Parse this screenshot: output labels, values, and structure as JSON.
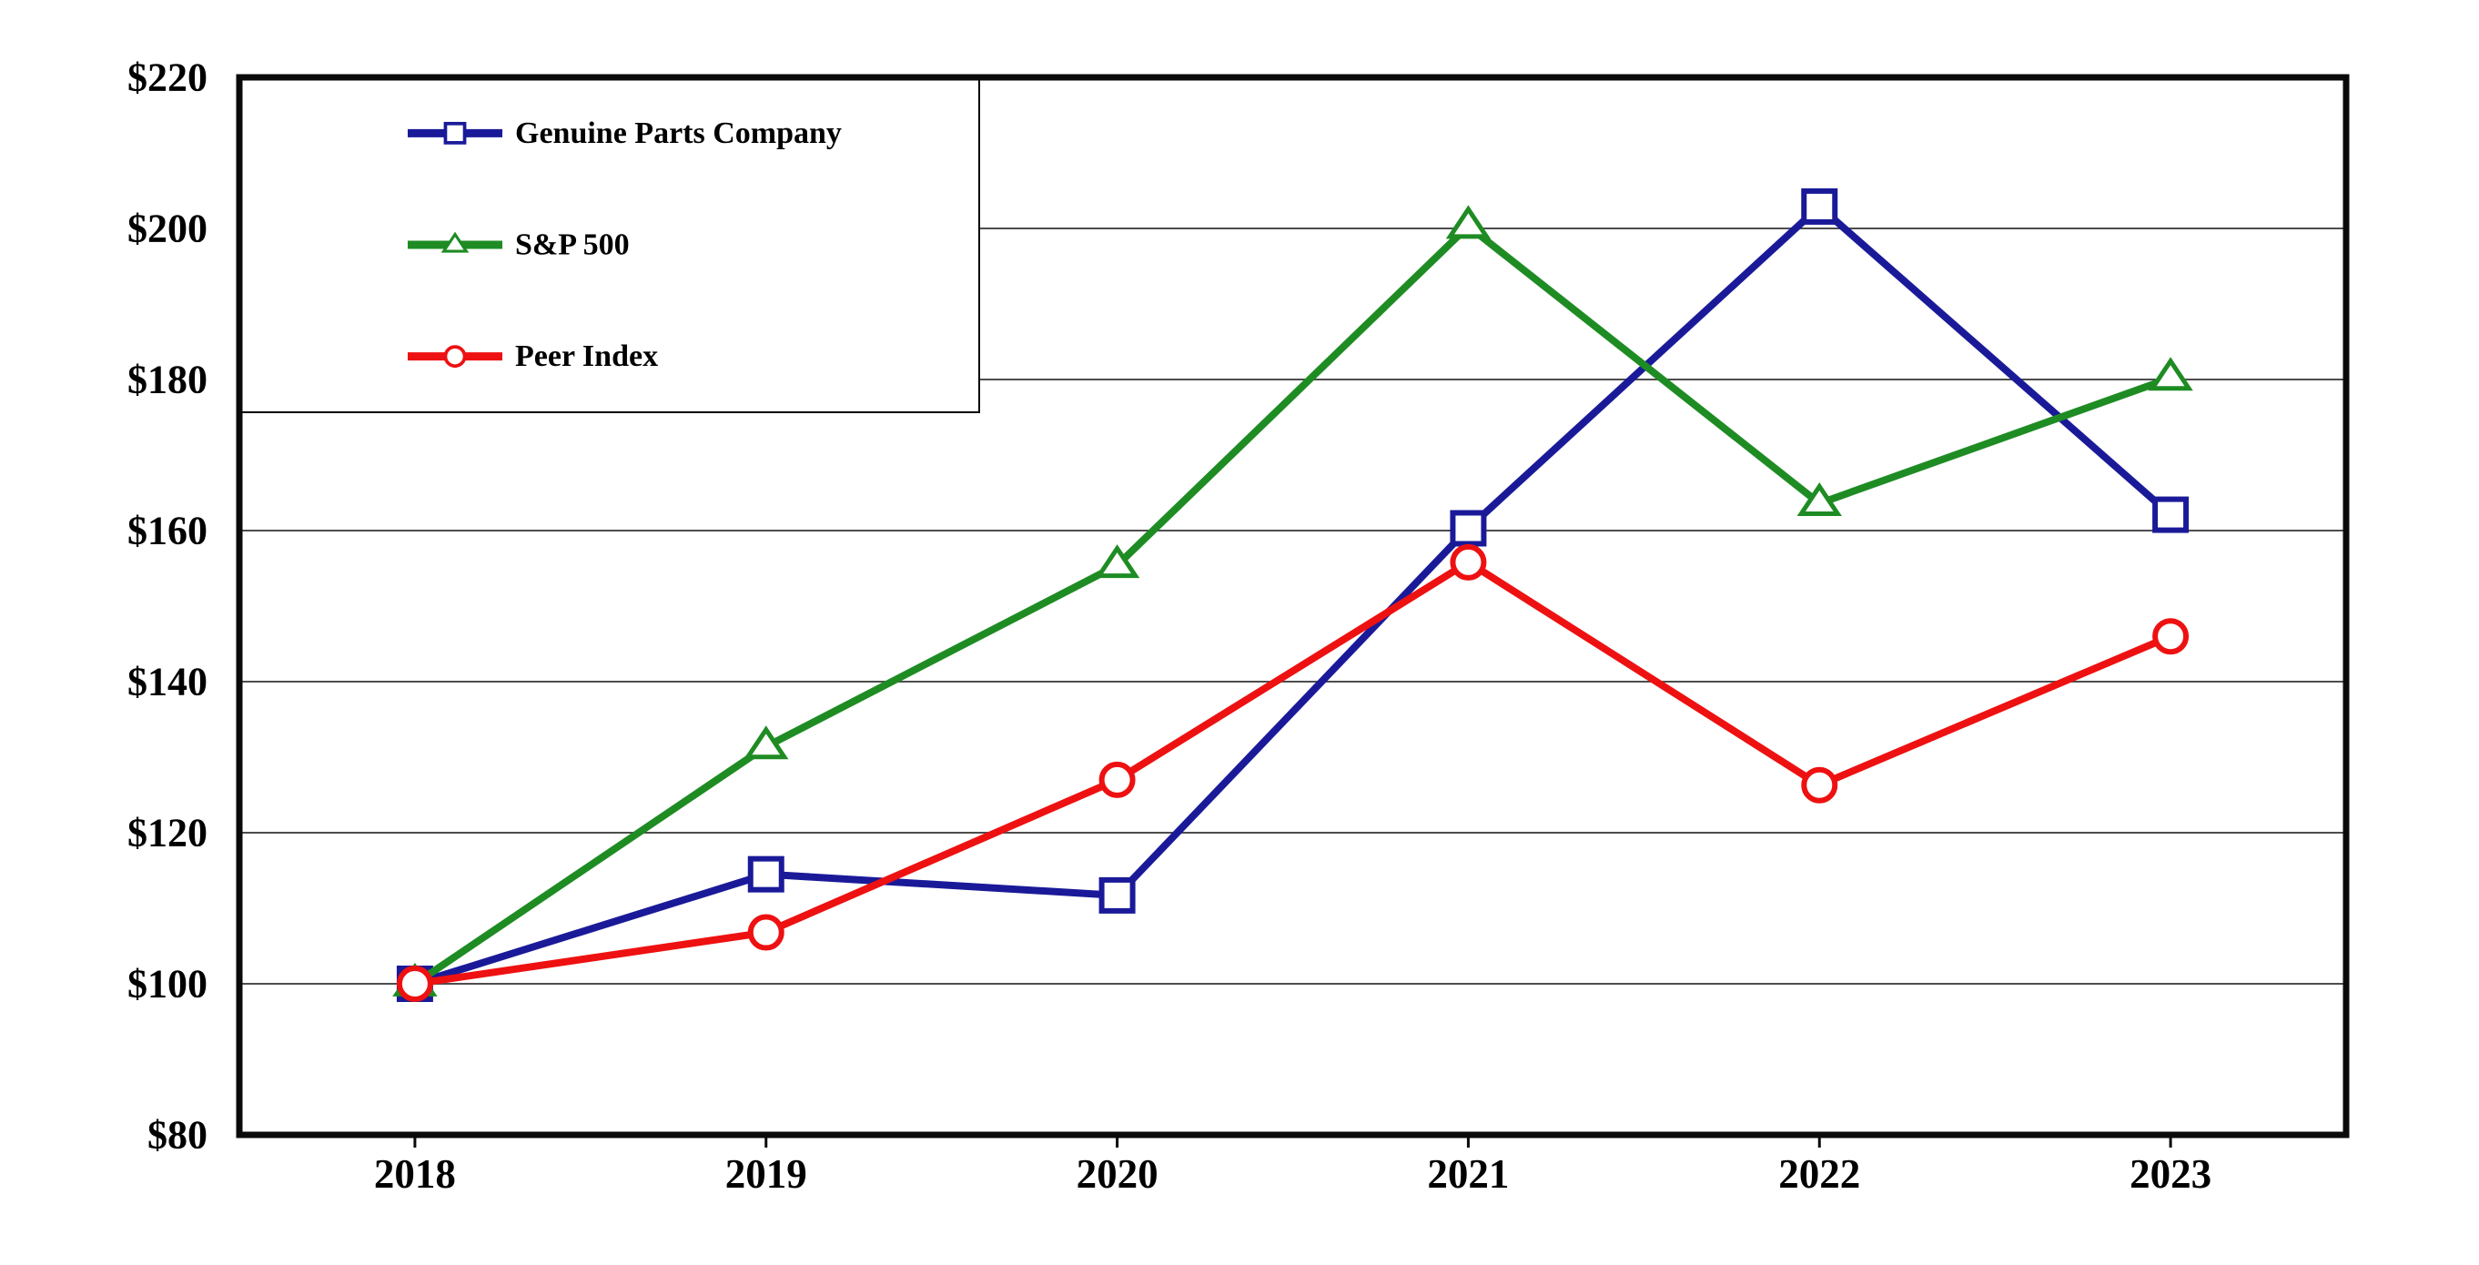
{
  "chart_data": {
    "type": "line",
    "title": "",
    "xlabel": "",
    "ylabel": "",
    "x": [
      "2018",
      "2019",
      "2020",
      "2021",
      "2022",
      "2023"
    ],
    "series": [
      {
        "name": "Genuine Parts Company",
        "color": "#1A1A99",
        "marker": "square",
        "values": [
          100,
          114.5,
          111.7,
          160.3,
          202.9,
          162.1
        ]
      },
      {
        "name": "S&P 500",
        "color": "#1E8C23",
        "marker": "triangle",
        "values": [
          100,
          131.4,
          155.4,
          200.3,
          163.6,
          180.2
        ]
      },
      {
        "name": "Peer Index",
        "color": "#EE1111",
        "marker": "circle",
        "values": [
          100,
          106.8,
          127.0,
          155.8,
          126.3,
          146.0
        ]
      }
    ],
    "ylim": [
      80,
      220
    ],
    "ytick_step": 20,
    "ytick_labels": [
      "$80",
      "$100",
      "$120",
      "$140",
      "$160",
      "$180",
      "$200",
      "$220"
    ],
    "xtick_labels": [
      "2018",
      "2019",
      "2020",
      "2021",
      "2022",
      "2023"
    ],
    "grid": true,
    "gridline_color": "#4d4d4d",
    "axis_color": "#0a0a0a",
    "legend_position": "top-left",
    "plot_background": "#ffffff"
  }
}
